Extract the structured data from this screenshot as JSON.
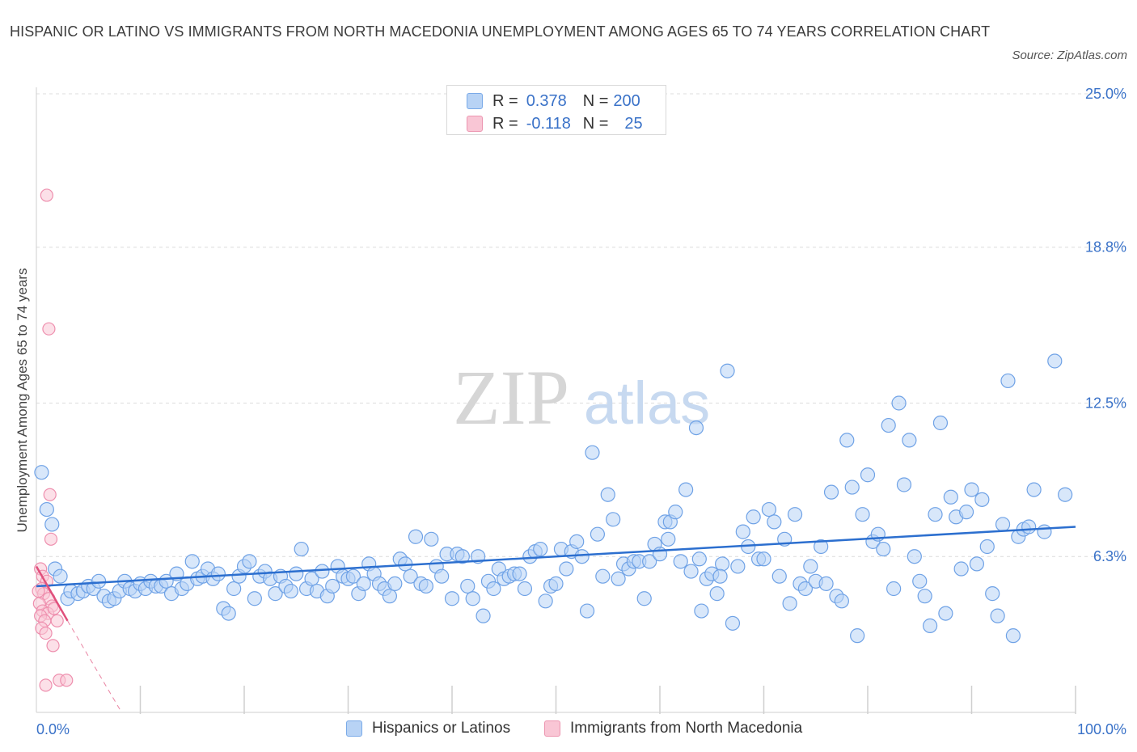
{
  "title": "HISPANIC OR LATINO VS IMMIGRANTS FROM NORTH MACEDONIA UNEMPLOYMENT AMONG AGES 65 TO 74 YEARS CORRELATION CHART",
  "source": "Source: ZipAtlas.com",
  "watermark": {
    "zip": "ZIP",
    "atlas": "atlas"
  },
  "legend": {
    "r_label": "R =",
    "n_label": "N =",
    "series1": {
      "r": "0.378",
      "n": "200"
    },
    "series2": {
      "r": "-0.118",
      "n": "25"
    }
  },
  "bottom_legend": {
    "series1": "Hispanics or Latinos",
    "series2": "Immigrants from North Macedonia"
  },
  "colors": {
    "blue_fill": "#b8d3f5",
    "blue_stroke": "#6fa2e6",
    "blue_line": "#2c6fcf",
    "pink_fill": "#f9c6d5",
    "pink_stroke": "#ee8fae",
    "pink_line": "#e0507c",
    "tick_label": "#3a72c8",
    "grid": "#dcdcdc"
  },
  "chart_data": {
    "type": "scatter",
    "title": "HISPANIC OR LATINO VS IMMIGRANTS FROM NORTH MACEDONIA UNEMPLOYMENT AMONG AGES 65 TO 74 YEARS CORRELATION CHART",
    "xlabel": "",
    "ylabel": "Unemployment Among Ages 65 to 74 years",
    "xlim": [
      0,
      100
    ],
    "ylim": [
      0,
      26
    ],
    "x_tick_labels": [
      "0.0%",
      "100.0%"
    ],
    "y_ticks": [
      6.3,
      12.5,
      18.8,
      25.0
    ],
    "y_tick_labels": [
      "6.3%",
      "12.5%",
      "18.8%",
      "25.0%"
    ],
    "series": [
      {
        "name": "Hispanics or Latinos",
        "trend": {
          "x0": 0,
          "y0": 5.1,
          "x1": 100,
          "y1": 7.5
        },
        "points": [
          [
            0.5,
            9.7
          ],
          [
            1.0,
            8.2
          ],
          [
            1.5,
            7.6
          ],
          [
            1.8,
            5.8
          ],
          [
            2.3,
            5.5
          ],
          [
            3.0,
            4.6
          ],
          [
            3.3,
            4.9
          ],
          [
            4.0,
            4.8
          ],
          [
            4.5,
            4.9
          ],
          [
            5.0,
            5.1
          ],
          [
            5.5,
            5.0
          ],
          [
            6.0,
            5.3
          ],
          [
            6.5,
            4.7
          ],
          [
            7.0,
            4.5
          ],
          [
            7.5,
            4.6
          ],
          [
            8.0,
            4.9
          ],
          [
            8.5,
            5.3
          ],
          [
            9.0,
            5.0
          ],
          [
            9.5,
            4.9
          ],
          [
            10.0,
            5.2
          ],
          [
            10.5,
            5.0
          ],
          [
            11.0,
            5.3
          ],
          [
            11.5,
            5.1
          ],
          [
            12.0,
            5.1
          ],
          [
            12.5,
            5.3
          ],
          [
            13.0,
            4.8
          ],
          [
            13.5,
            5.6
          ],
          [
            14.0,
            5.0
          ],
          [
            14.5,
            5.2
          ],
          [
            15.0,
            6.1
          ],
          [
            15.5,
            5.4
          ],
          [
            16.0,
            5.5
          ],
          [
            16.5,
            5.8
          ],
          [
            17.0,
            5.4
          ],
          [
            17.5,
            5.6
          ],
          [
            18.0,
            4.2
          ],
          [
            18.5,
            4.0
          ],
          [
            19.0,
            5.0
          ],
          [
            19.5,
            5.5
          ],
          [
            20.0,
            5.9
          ],
          [
            20.5,
            6.1
          ],
          [
            21.0,
            4.6
          ],
          [
            21.5,
            5.5
          ],
          [
            22.0,
            5.7
          ],
          [
            22.5,
            5.4
          ],
          [
            23.0,
            4.8
          ],
          [
            23.5,
            5.5
          ],
          [
            24.0,
            5.1
          ],
          [
            24.5,
            4.9
          ],
          [
            25.0,
            5.6
          ],
          [
            25.5,
            6.6
          ],
          [
            26.0,
            5.0
          ],
          [
            26.5,
            5.4
          ],
          [
            27.0,
            4.9
          ],
          [
            27.5,
            5.7
          ],
          [
            28.0,
            4.7
          ],
          [
            28.5,
            5.1
          ],
          [
            29.0,
            5.9
          ],
          [
            29.5,
            5.5
          ],
          [
            30.0,
            5.4
          ],
          [
            30.5,
            5.5
          ],
          [
            31.0,
            4.8
          ],
          [
            31.5,
            5.2
          ],
          [
            32.0,
            6.0
          ],
          [
            32.5,
            5.6
          ],
          [
            33.0,
            5.2
          ],
          [
            33.5,
            5.0
          ],
          [
            34.0,
            4.7
          ],
          [
            34.5,
            5.2
          ],
          [
            35.0,
            6.2
          ],
          [
            35.5,
            6.0
          ],
          [
            36.0,
            5.5
          ],
          [
            36.5,
            7.1
          ],
          [
            37.0,
            5.2
          ],
          [
            37.5,
            5.1
          ],
          [
            38.0,
            7.0
          ],
          [
            38.5,
            5.9
          ],
          [
            39.0,
            5.5
          ],
          [
            39.5,
            6.4
          ],
          [
            40.0,
            4.6
          ],
          [
            40.5,
            6.4
          ],
          [
            41.0,
            6.3
          ],
          [
            41.5,
            5.1
          ],
          [
            42.0,
            4.6
          ],
          [
            42.5,
            6.3
          ],
          [
            43.0,
            3.9
          ],
          [
            43.5,
            5.3
          ],
          [
            44.0,
            5.0
          ],
          [
            44.5,
            5.8
          ],
          [
            45.0,
            5.4
          ],
          [
            45.5,
            5.5
          ],
          [
            46.0,
            5.6
          ],
          [
            46.5,
            5.6
          ],
          [
            47.0,
            5.0
          ],
          [
            47.5,
            6.3
          ],
          [
            48.0,
            6.5
          ],
          [
            48.5,
            6.6
          ],
          [
            49.0,
            4.5
          ],
          [
            49.5,
            5.1
          ],
          [
            50.0,
            5.2
          ],
          [
            50.5,
            6.6
          ],
          [
            51.0,
            5.8
          ],
          [
            51.5,
            6.5
          ],
          [
            52.0,
            6.9
          ],
          [
            52.5,
            6.3
          ],
          [
            53.0,
            4.1
          ],
          [
            53.5,
            10.5
          ],
          [
            54.0,
            7.2
          ],
          [
            54.5,
            5.5
          ],
          [
            55.0,
            8.8
          ],
          [
            55.5,
            7.8
          ],
          [
            56.0,
            5.4
          ],
          [
            56.5,
            6.0
          ],
          [
            57.0,
            5.8
          ],
          [
            57.5,
            6.1
          ],
          [
            58.0,
            6.1
          ],
          [
            58.5,
            4.6
          ],
          [
            59.0,
            6.1
          ],
          [
            59.5,
            6.8
          ],
          [
            60.0,
            6.4
          ],
          [
            60.5,
            7.7
          ],
          [
            61.0,
            7.7
          ],
          [
            61.5,
            8.1
          ],
          [
            62.0,
            6.1
          ],
          [
            62.5,
            9.0
          ],
          [
            63.0,
            5.7
          ],
          [
            63.5,
            11.5
          ],
          [
            64.0,
            4.1
          ],
          [
            64.5,
            5.4
          ],
          [
            65.0,
            5.6
          ],
          [
            65.5,
            4.8
          ],
          [
            66.0,
            6.0
          ],
          [
            66.5,
            13.8
          ],
          [
            67.0,
            3.6
          ],
          [
            67.5,
            5.9
          ],
          [
            68.0,
            7.3
          ],
          [
            68.5,
            6.7
          ],
          [
            69.0,
            7.9
          ],
          [
            69.5,
            6.2
          ],
          [
            70.0,
            6.2
          ],
          [
            70.5,
            8.2
          ],
          [
            71.0,
            7.7
          ],
          [
            71.5,
            5.5
          ],
          [
            72.0,
            7.0
          ],
          [
            72.5,
            4.4
          ],
          [
            73.0,
            8.0
          ],
          [
            73.5,
            5.2
          ],
          [
            74.0,
            5.0
          ],
          [
            74.5,
            5.9
          ],
          [
            75.0,
            5.3
          ],
          [
            75.5,
            6.7
          ],
          [
            76.0,
            5.2
          ],
          [
            76.5,
            8.9
          ],
          [
            77.0,
            4.7
          ],
          [
            77.5,
            4.5
          ],
          [
            78.0,
            11.0
          ],
          [
            78.5,
            9.1
          ],
          [
            79.0,
            3.1
          ],
          [
            79.5,
            8.0
          ],
          [
            80.0,
            9.6
          ],
          [
            80.5,
            6.9
          ],
          [
            81.0,
            7.2
          ],
          [
            81.5,
            6.6
          ],
          [
            82.0,
            11.6
          ],
          [
            82.5,
            5.0
          ],
          [
            83.0,
            12.5
          ],
          [
            83.5,
            9.2
          ],
          [
            84.0,
            11.0
          ],
          [
            84.5,
            6.3
          ],
          [
            85.0,
            5.3
          ],
          [
            85.5,
            4.7
          ],
          [
            86.0,
            3.5
          ],
          [
            86.5,
            8.0
          ],
          [
            87.0,
            11.7
          ],
          [
            87.5,
            4.0
          ],
          [
            88.0,
            8.7
          ],
          [
            88.5,
            7.9
          ],
          [
            89.0,
            5.8
          ],
          [
            89.5,
            8.1
          ],
          [
            90.0,
            9.0
          ],
          [
            90.5,
            6.0
          ],
          [
            91.0,
            8.6
          ],
          [
            91.5,
            6.7
          ],
          [
            92.0,
            4.8
          ],
          [
            92.5,
            3.9
          ],
          [
            93.0,
            7.6
          ],
          [
            93.5,
            13.4
          ],
          [
            94.0,
            3.1
          ],
          [
            94.5,
            7.1
          ],
          [
            95.0,
            7.4
          ],
          [
            95.5,
            7.5
          ],
          [
            96.0,
            9.0
          ],
          [
            97.0,
            7.3
          ],
          [
            98.0,
            14.2
          ],
          [
            99.0,
            8.8
          ],
          [
            60.8,
            7.0
          ],
          [
            63.8,
            6.2
          ],
          [
            65.8,
            5.5
          ]
        ]
      },
      {
        "name": "Immigrants from North Macedonia",
        "trend": {
          "x0": 0,
          "y0": 5.9,
          "x1": 3.0,
          "y1": 3.7,
          "dash_x1": 8.2,
          "dash_y1": 0
        },
        "points": [
          [
            1.0,
            20.9
          ],
          [
            1.2,
            15.5
          ],
          [
            1.3,
            8.8
          ],
          [
            1.4,
            7.0
          ],
          [
            0.4,
            5.8
          ],
          [
            0.6,
            5.5
          ],
          [
            1.0,
            5.3
          ],
          [
            0.5,
            5.0
          ],
          [
            0.7,
            4.8
          ],
          [
            1.2,
            4.6
          ],
          [
            0.3,
            4.4
          ],
          [
            1.5,
            4.3
          ],
          [
            0.6,
            4.1
          ],
          [
            1.1,
            4.0
          ],
          [
            0.4,
            3.9
          ],
          [
            0.8,
            3.7
          ],
          [
            2.0,
            3.7
          ],
          [
            0.5,
            3.4
          ],
          [
            0.9,
            3.2
          ],
          [
            1.6,
            2.7
          ],
          [
            2.2,
            1.3
          ],
          [
            2.9,
            1.3
          ],
          [
            0.9,
            1.1
          ],
          [
            1.7,
            4.2
          ],
          [
            0.2,
            4.9
          ]
        ]
      }
    ]
  }
}
